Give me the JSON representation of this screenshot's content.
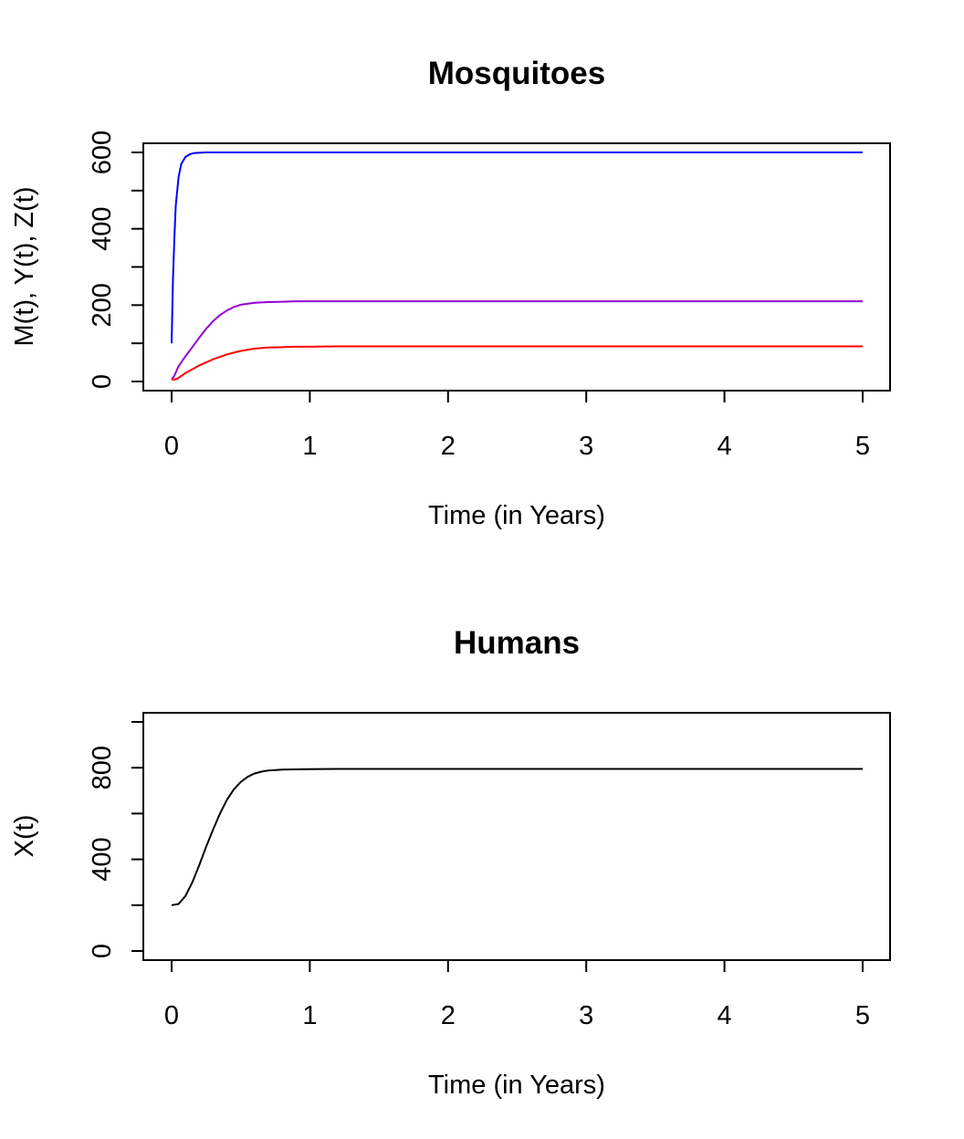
{
  "chart_data": [
    {
      "type": "line",
      "title": "Mosquitoes",
      "xlabel": "Time (in Years)",
      "ylabel": "M(t), Y(t), Z(t)",
      "xlim": [
        0,
        5
      ],
      "ylim": [
        0,
        600
      ],
      "x_ticks": [
        "0",
        "1",
        "2",
        "3",
        "4",
        "5"
      ],
      "y_ticks": [
        "0",
        "200",
        "400",
        "600"
      ],
      "grid": false,
      "series": [
        {
          "color": "#0000ff",
          "x": [
            0,
            0.01,
            0.02,
            0.03,
            0.05,
            0.07,
            0.1,
            0.13,
            0.16,
            0.2,
            0.25,
            0.3,
            0.4,
            0.5,
            0.75,
            1,
            1.5,
            2,
            3,
            4,
            5
          ],
          "y": [
            100,
            270,
            375,
            460,
            535,
            570,
            588,
            595,
            598,
            599,
            600,
            600,
            600,
            600,
            600,
            600,
            600,
            600,
            600,
            600,
            600
          ]
        },
        {
          "color": "#9400d3",
          "x": [
            0,
            0.02,
            0.05,
            0.1,
            0.15,
            0.2,
            0.25,
            0.3,
            0.35,
            0.4,
            0.45,
            0.5,
            0.6,
            0.7,
            0.8,
            0.9,
            1,
            1.2,
            1.5,
            2,
            3,
            4,
            5
          ],
          "y": [
            5,
            15,
            40,
            66,
            90,
            115,
            138,
            158,
            174,
            186,
            195,
            201,
            206,
            208,
            209,
            210,
            210,
            210,
            210,
            210,
            210,
            210,
            210
          ]
        },
        {
          "color": "#ff0000",
          "x": [
            0,
            0.02,
            0.04,
            0.06,
            0.1,
            0.15,
            0.2,
            0.3,
            0.4,
            0.5,
            0.6,
            0.7,
            0.8,
            0.9,
            1,
            1.2,
            1.5,
            2,
            3,
            4,
            5
          ],
          "y": [
            5,
            5,
            7,
            12,
            22,
            32,
            42,
            58,
            71,
            80,
            86,
            89,
            90,
            91,
            91,
            92,
            92,
            92,
            92,
            92,
            92
          ]
        }
      ]
    },
    {
      "type": "line",
      "title": "Humans",
      "xlabel": "Time (in Years)",
      "ylabel": "X(t)",
      "xlim": [
        0,
        5
      ],
      "ylim": [
        0,
        1000
      ],
      "x_ticks": [
        "0",
        "1",
        "2",
        "3",
        "4",
        "5"
      ],
      "y_ticks": [
        "0",
        "400",
        "800"
      ],
      "grid": false,
      "series": [
        {
          "color": "#000000",
          "x": [
            0,
            0.05,
            0.1,
            0.15,
            0.2,
            0.25,
            0.3,
            0.35,
            0.4,
            0.45,
            0.5,
            0.55,
            0.6,
            0.65,
            0.7,
            0.8,
            0.9,
            1,
            1.2,
            1.5,
            2,
            3,
            4,
            5
          ],
          "y": [
            200,
            205,
            240,
            300,
            375,
            455,
            530,
            600,
            660,
            705,
            738,
            760,
            775,
            783,
            788,
            792,
            793,
            794,
            795,
            795,
            795,
            795,
            795,
            795
          ]
        }
      ]
    }
  ]
}
